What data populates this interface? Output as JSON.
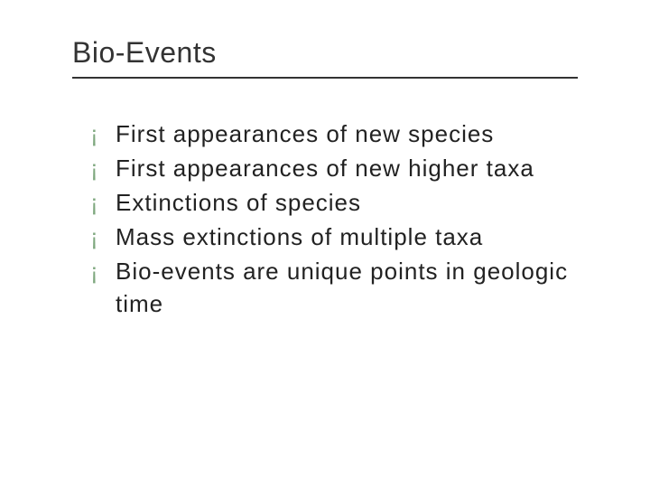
{
  "slide": {
    "title": "Bio-Events",
    "title_color": "#333333",
    "title_fontsize": 32,
    "rule_color": "#333333",
    "bullet_glyph": "¡",
    "bullet_color": "#7fa87f",
    "body_color": "#222222",
    "body_fontsize": 26,
    "background_color": "#ffffff",
    "bullets": [
      "First appearances of new species",
      "First appearances of new higher taxa",
      "Extinctions of species",
      "Mass extinctions of multiple taxa",
      "Bio-events are unique points in geologic time"
    ]
  }
}
